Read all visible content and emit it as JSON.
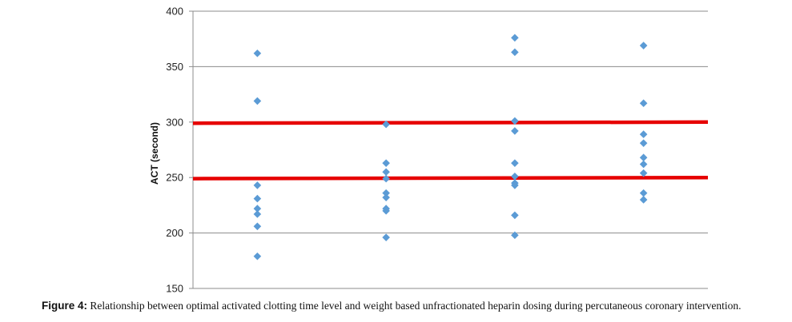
{
  "chart_data": {
    "type": "scatter",
    "ylabel": "ACT (second)",
    "ylim": [
      150,
      400
    ],
    "yticks": [
      "150",
      "200",
      "250",
      "300",
      "350",
      "400"
    ],
    "xlim": [
      0.5,
      4.5
    ],
    "grid": true,
    "marker_color": "#5b9bd5",
    "reference_line_color": "#e60000",
    "reference_lines": [
      {
        "x": [
          0.5,
          4.5
        ],
        "y": [
          299,
          300
        ]
      },
      {
        "x": [
          0.5,
          4.5
        ],
        "y": [
          249,
          250
        ]
      }
    ],
    "points": [
      {
        "x": 1,
        "y": 362
      },
      {
        "x": 1,
        "y": 319
      },
      {
        "x": 1,
        "y": 243
      },
      {
        "x": 1,
        "y": 231
      },
      {
        "x": 1,
        "y": 222
      },
      {
        "x": 1,
        "y": 217
      },
      {
        "x": 1,
        "y": 206
      },
      {
        "x": 1,
        "y": 179
      },
      {
        "x": 2,
        "y": 298
      },
      {
        "x": 2,
        "y": 263
      },
      {
        "x": 2,
        "y": 255
      },
      {
        "x": 2,
        "y": 249
      },
      {
        "x": 2,
        "y": 236
      },
      {
        "x": 2,
        "y": 232
      },
      {
        "x": 2,
        "y": 222
      },
      {
        "x": 2,
        "y": 220
      },
      {
        "x": 2,
        "y": 196
      },
      {
        "x": 3,
        "y": 376
      },
      {
        "x": 3,
        "y": 363
      },
      {
        "x": 3,
        "y": 301
      },
      {
        "x": 3,
        "y": 292
      },
      {
        "x": 3,
        "y": 263
      },
      {
        "x": 3,
        "y": 251
      },
      {
        "x": 3,
        "y": 245
      },
      {
        "x": 3,
        "y": 243
      },
      {
        "x": 3,
        "y": 216
      },
      {
        "x": 3,
        "y": 198
      },
      {
        "x": 4,
        "y": 369
      },
      {
        "x": 4,
        "y": 317
      },
      {
        "x": 4,
        "y": 289
      },
      {
        "x": 4,
        "y": 281
      },
      {
        "x": 4,
        "y": 268
      },
      {
        "x": 4,
        "y": 262
      },
      {
        "x": 4,
        "y": 254
      },
      {
        "x": 4,
        "y": 236
      },
      {
        "x": 4,
        "y": 230
      }
    ]
  },
  "caption": {
    "lead": "Figure 4:",
    "text": " Relationship between optimal activated clotting time level and weight based unfractionated heparin dosing during percutaneous coronary intervention."
  }
}
